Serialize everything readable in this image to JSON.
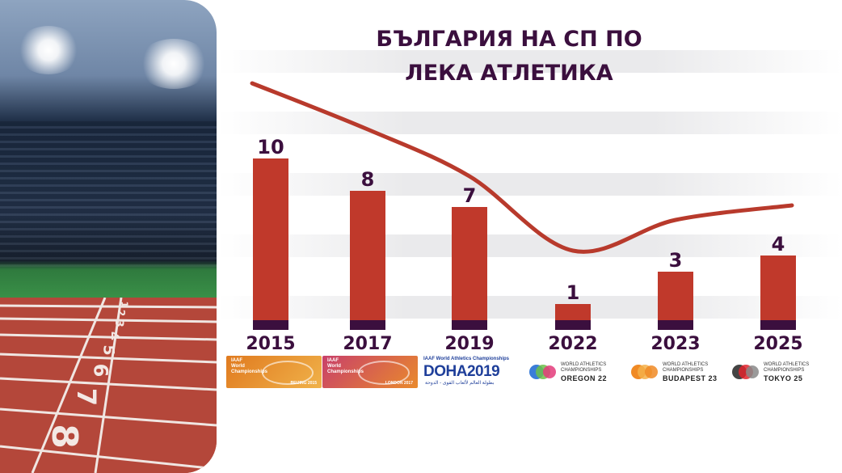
{
  "chart_data": {
    "type": "bar",
    "title": "БЪЛГАРИЯ НА СП ПО ЛЕКА АТЛЕТИКА",
    "title_lines": [
      "БЪЛГАРИЯ НА СП ПО",
      "ЛЕКА АТЛЕТИКА"
    ],
    "categories": [
      "2015",
      "2017",
      "2019",
      "2022",
      "2023",
      "2025"
    ],
    "values": [
      10,
      8,
      7,
      1,
      3,
      4
    ],
    "trend_line": true,
    "bar_color": "#c0392b",
    "bar_base_color": "#3b0f3e",
    "trend_color": "#b83a2c",
    "text_color": "#3b0f3e",
    "xlabel": "",
    "ylabel": "",
    "grid": false,
    "legend": "none"
  },
  "logos": [
    {
      "icon": "beijing-2015-logo",
      "lines": [
        "IAAF",
        "World",
        "Championships"
      ],
      "caption": "BEIJING 2015"
    },
    {
      "icon": "london-2017-logo",
      "lines": [
        "IAAF",
        "World",
        "Championships"
      ],
      "caption": "LONDON 2017"
    },
    {
      "icon": "doha-2019-logo",
      "lines": [
        "IAAF World Athletics Championships"
      ],
      "main": "DOHA2019",
      "caption": "بطولة العالم لألعاب القوى - الدوحة"
    },
    {
      "icon": "oregon-22-logo",
      "lines": [
        "WORLD ATHLETICS",
        "CHAMPIONSHIPS"
      ],
      "main": "OREGON 22"
    },
    {
      "icon": "budapest-23-logo",
      "lines": [
        "WORLD ATHLETICS",
        "CHAMPIONSHIPS"
      ],
      "main": "BUDAPEST 23"
    },
    {
      "icon": "tokyo-25-logo",
      "lines": [
        "WORLD ATHLETICS",
        "CHAMPIONSHIPS"
      ],
      "main": "TOKYO 25"
    }
  ],
  "stadium": {
    "icon": "stadium-track-image",
    "lane_numbers": [
      "1",
      "2",
      "3",
      "4",
      "5",
      "6",
      "7",
      "8"
    ]
  }
}
